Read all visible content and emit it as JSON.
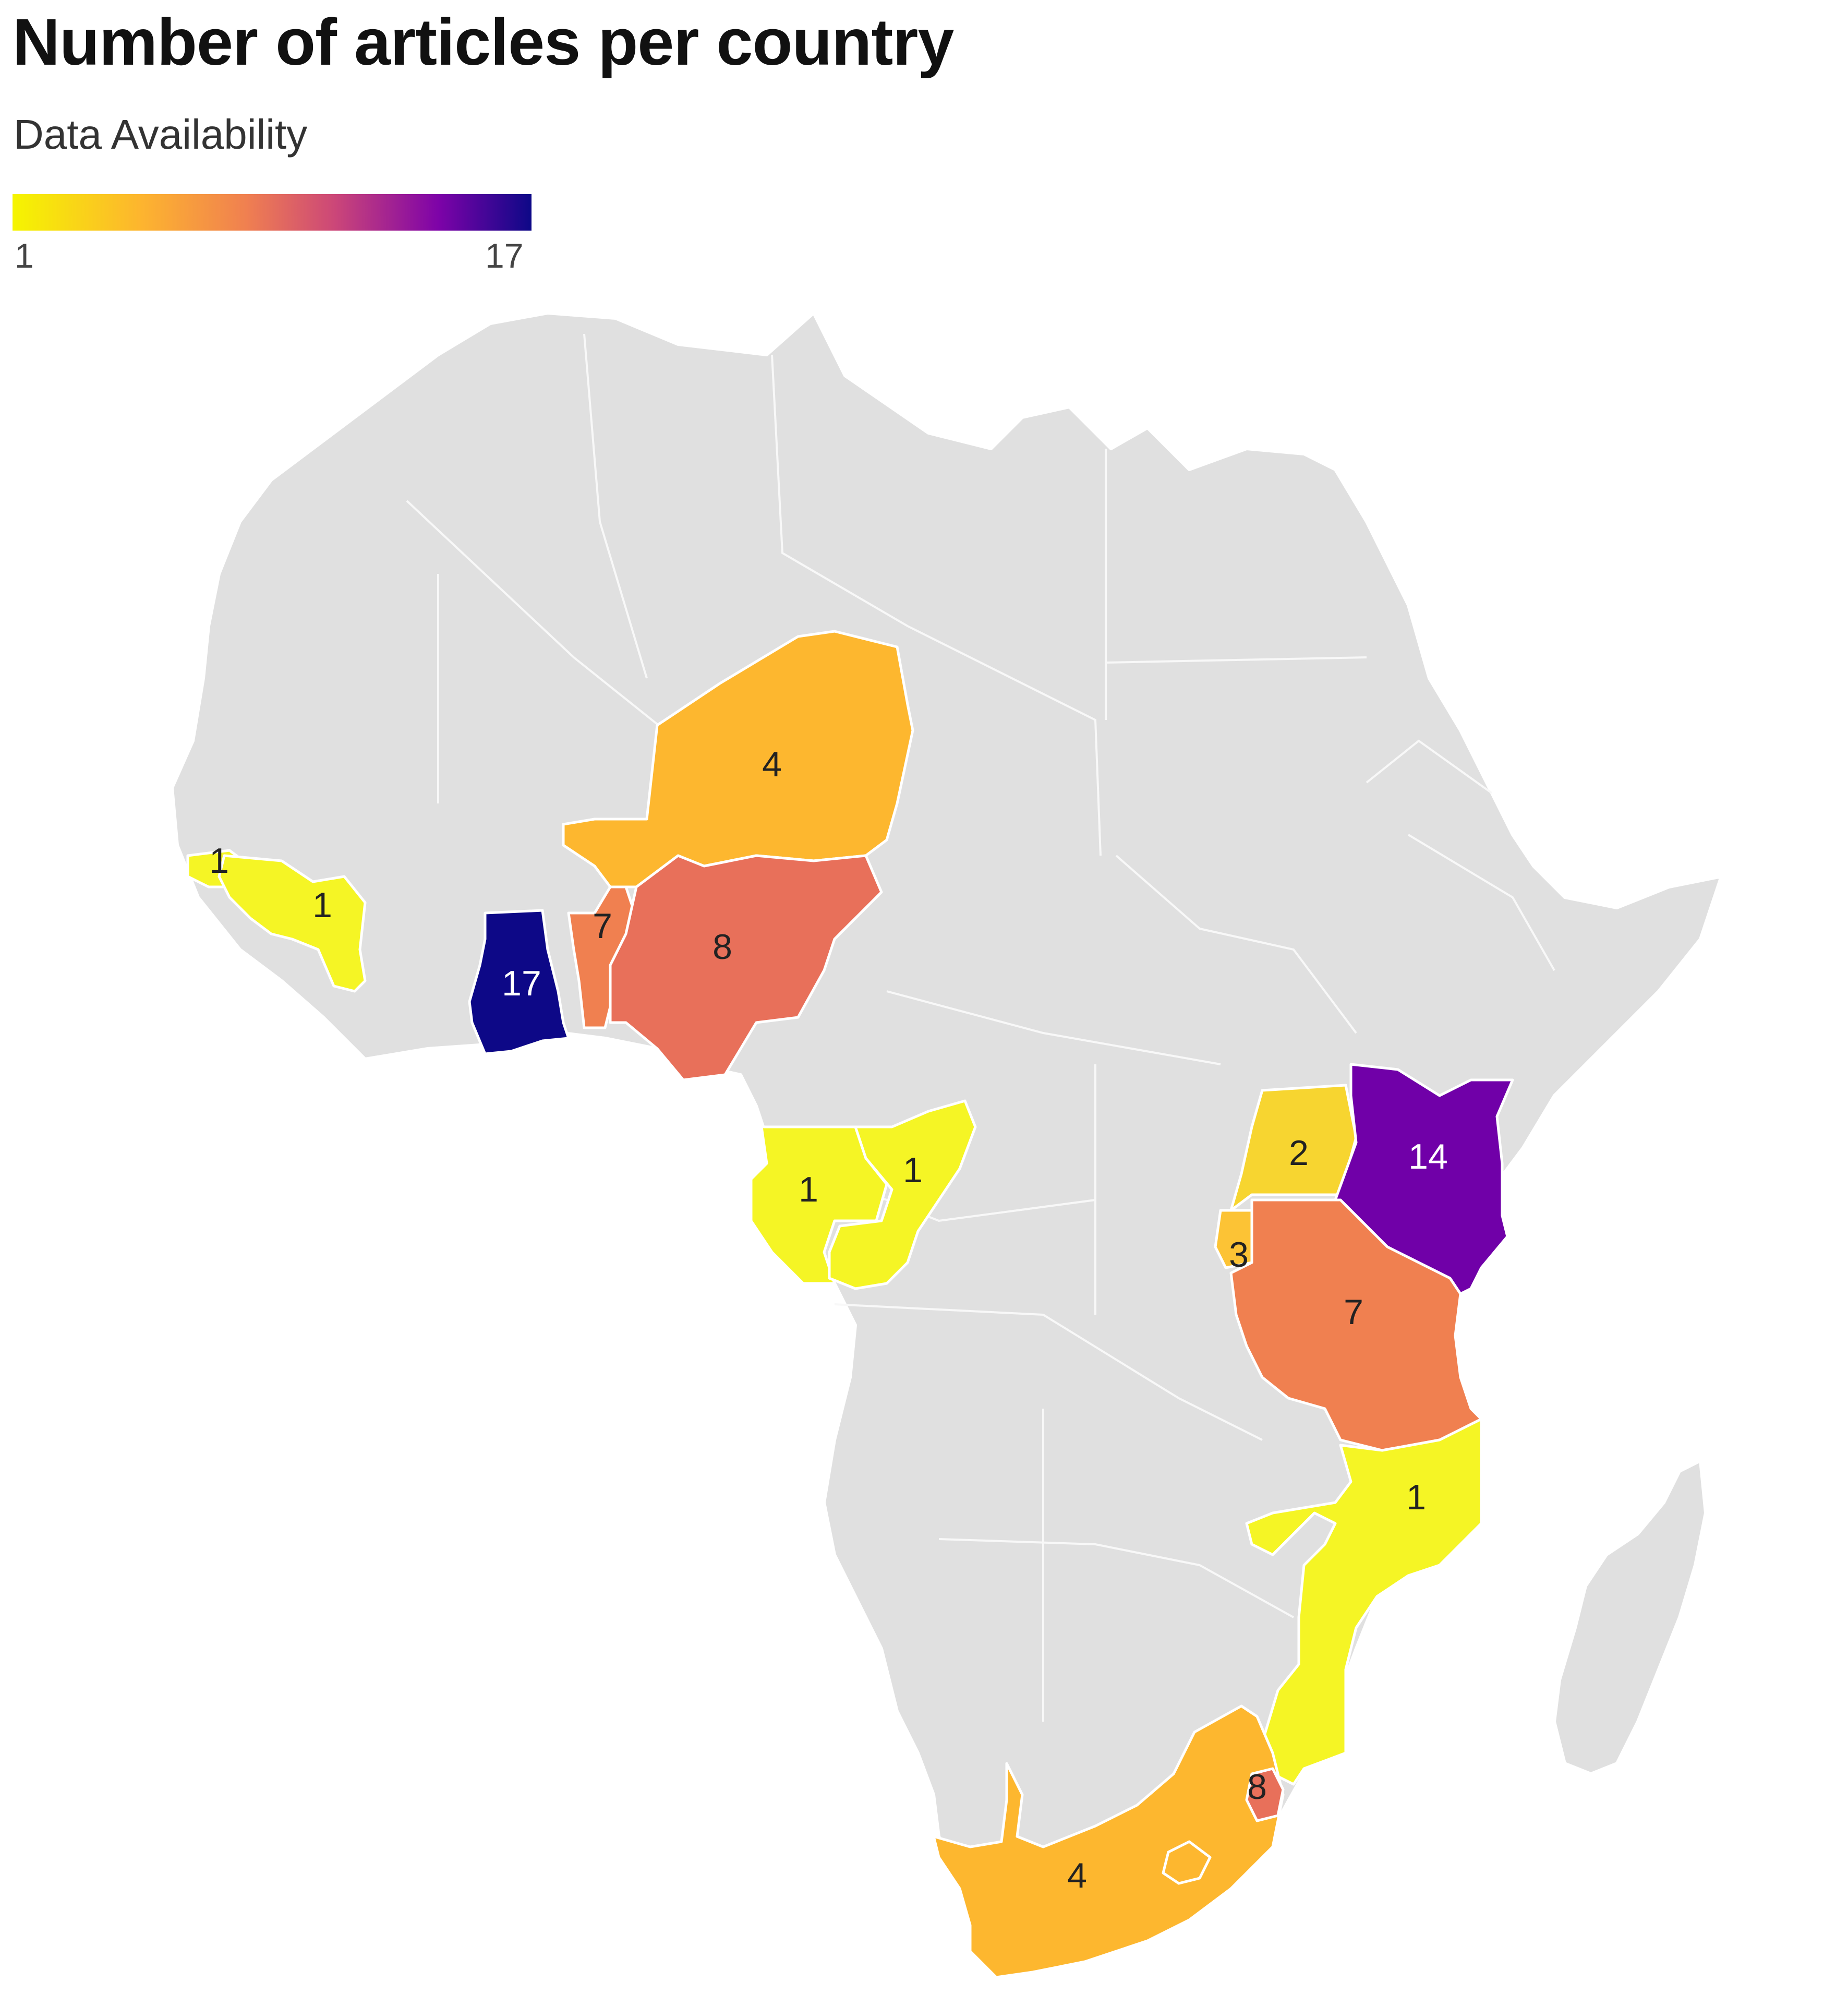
{
  "title": "Number of articles per country",
  "legend": {
    "title": "Data Availability",
    "min_label": "1",
    "max_label": "17",
    "color_scale": [
      "#f5f500",
      "#fdb42f",
      "#f08050",
      "#cc4778",
      "#7e03a8",
      "#0d0887"
    ]
  },
  "map": {
    "no_data_color": "#e0e0e0",
    "countries": [
      {
        "id": "guinea-bissau",
        "value": 1,
        "label": "1",
        "color": "#f5f525",
        "label_color": "#222222"
      },
      {
        "id": "guinea",
        "value": 1,
        "label": "1",
        "color": "#f5f525",
        "label_color": "#222222"
      },
      {
        "id": "ghana",
        "value": 17,
        "label": "17",
        "color": "#0d0887",
        "label_color": "#ffffff"
      },
      {
        "id": "benin",
        "value": 7,
        "label": "7",
        "color": "#f08050",
        "label_color": "#222222"
      },
      {
        "id": "niger",
        "value": 4,
        "label": "4",
        "color": "#fdb72f",
        "label_color": "#222222"
      },
      {
        "id": "nigeria",
        "value": 8,
        "label": "8",
        "color": "#e8705a",
        "label_color": "#222222"
      },
      {
        "id": "gabon",
        "value": 1,
        "label": "1",
        "color": "#f5f525",
        "label_color": "#222222"
      },
      {
        "id": "congo",
        "value": 1,
        "label": "1",
        "color": "#f5f525",
        "label_color": "#222222"
      },
      {
        "id": "uganda",
        "value": 2,
        "label": "2",
        "color": "#f7d530",
        "label_color": "#222222"
      },
      {
        "id": "kenya",
        "value": 14,
        "label": "14",
        "color": "#7000a8",
        "label_color": "#ffffff"
      },
      {
        "id": "rwanda",
        "value": 3,
        "label": "3",
        "color": "#fcc335",
        "label_color": "#222222"
      },
      {
        "id": "tanzania",
        "value": 7,
        "label": "7",
        "color": "#f08050",
        "label_color": "#222222"
      },
      {
        "id": "mozambique",
        "value": 1,
        "label": "1",
        "color": "#f5f525",
        "label_color": "#222222"
      },
      {
        "id": "south-africa",
        "value": 4,
        "label": "4",
        "color": "#fdb72f",
        "label_color": "#222222"
      },
      {
        "id": "eswatini",
        "value": 8,
        "label": "8",
        "color": "#e8705a",
        "label_color": "#222222"
      }
    ]
  }
}
